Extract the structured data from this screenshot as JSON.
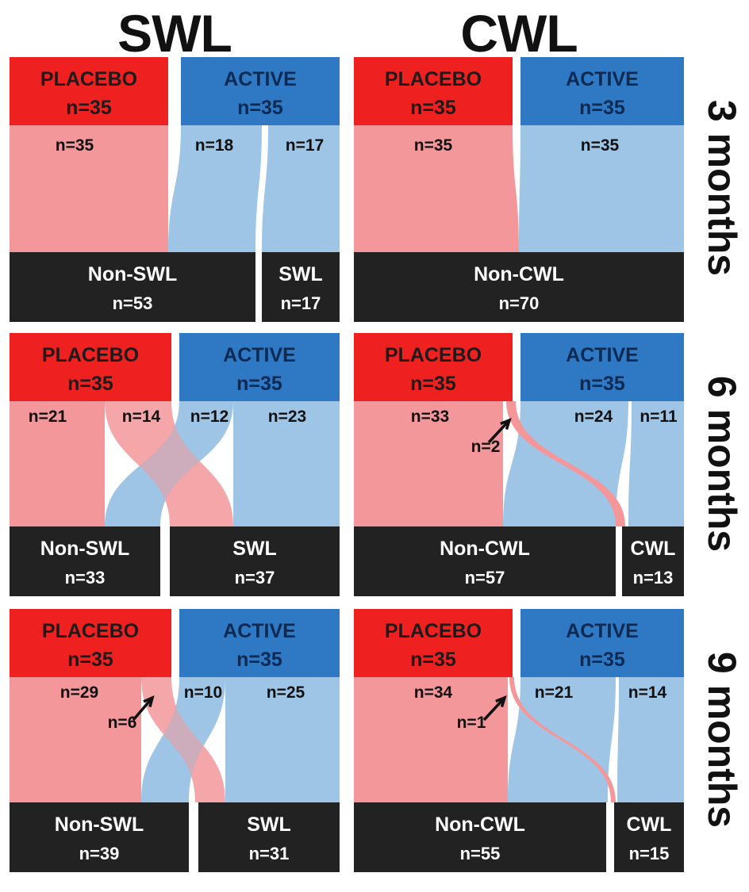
{
  "titles": {
    "left": "SWL",
    "right": "CWL"
  },
  "time_labels": [
    "3 months",
    "6 months",
    "9 months"
  ],
  "colors": {
    "placebo_box": "#ee2020",
    "active_box": "#2f78c4",
    "placebo_flow": "#f3979a",
    "active_flow": "#9ec5e6",
    "outcome_box": "#222222",
    "placebo_text": "#1b1b1b",
    "active_text": "#0d2a52"
  },
  "panels": [
    {
      "name": "swl-3",
      "row": 0,
      "col": 0,
      "placebo": {
        "label": "PLACEBO",
        "n": "n=35"
      },
      "active": {
        "label": "ACTIVE",
        "n": "n=35"
      },
      "outcomes": [
        {
          "label": "Non-SWL",
          "n": "n=53"
        },
        {
          "label": "SWL",
          "n": "n=17"
        }
      ],
      "flow_labels": [
        "n=35",
        "n=18",
        "n=17"
      ]
    },
    {
      "name": "cwl-3",
      "row": 0,
      "col": 1,
      "placebo": {
        "label": "PLACEBO",
        "n": "n=35"
      },
      "active": {
        "label": "ACTIVE",
        "n": "n=35"
      },
      "outcomes": [
        {
          "label": "Non-CWL",
          "n": "n=70"
        }
      ],
      "flow_labels": [
        "n=35",
        "n=35"
      ]
    },
    {
      "name": "swl-6",
      "row": 1,
      "col": 0,
      "placebo": {
        "label": "PLACEBO",
        "n": "n=35"
      },
      "active": {
        "label": "ACTIVE",
        "n": "n=35"
      },
      "outcomes": [
        {
          "label": "Non-SWL",
          "n": "n=33"
        },
        {
          "label": "SWL",
          "n": "n=37"
        }
      ],
      "flow_labels": [
        "n=21",
        "n=14",
        "n=12",
        "n=23"
      ]
    },
    {
      "name": "cwl-6",
      "row": 1,
      "col": 1,
      "placebo": {
        "label": "PLACEBO",
        "n": "n=35"
      },
      "active": {
        "label": "ACTIVE",
        "n": "n=35"
      },
      "outcomes": [
        {
          "label": "Non-CWL",
          "n": "n=57"
        },
        {
          "label": "CWL",
          "n": "n=13"
        }
      ],
      "flow_labels": [
        "n=33",
        "n=2",
        "n=24",
        "n=11"
      ]
    },
    {
      "name": "swl-9",
      "row": 2,
      "col": 0,
      "placebo": {
        "label": "PLACEBO",
        "n": "n=35"
      },
      "active": {
        "label": "ACTIVE",
        "n": "n=35"
      },
      "outcomes": [
        {
          "label": "Non-SWL",
          "n": "n=39"
        },
        {
          "label": "SWL",
          "n": "n=31"
        }
      ],
      "flow_labels": [
        "n=29",
        "n=6",
        "n=10",
        "n=25"
      ]
    },
    {
      "name": "cwl-9",
      "row": 2,
      "col": 1,
      "placebo": {
        "label": "PLACEBO",
        "n": "n=35"
      },
      "active": {
        "label": "ACTIVE",
        "n": "n=35"
      },
      "outcomes": [
        {
          "label": "Non-CWL",
          "n": "n=55"
        },
        {
          "label": "CWL",
          "n": "n=15"
        }
      ],
      "flow_labels": [
        "n=34",
        "n=1",
        "n=21",
        "n=14"
      ]
    }
  ]
}
